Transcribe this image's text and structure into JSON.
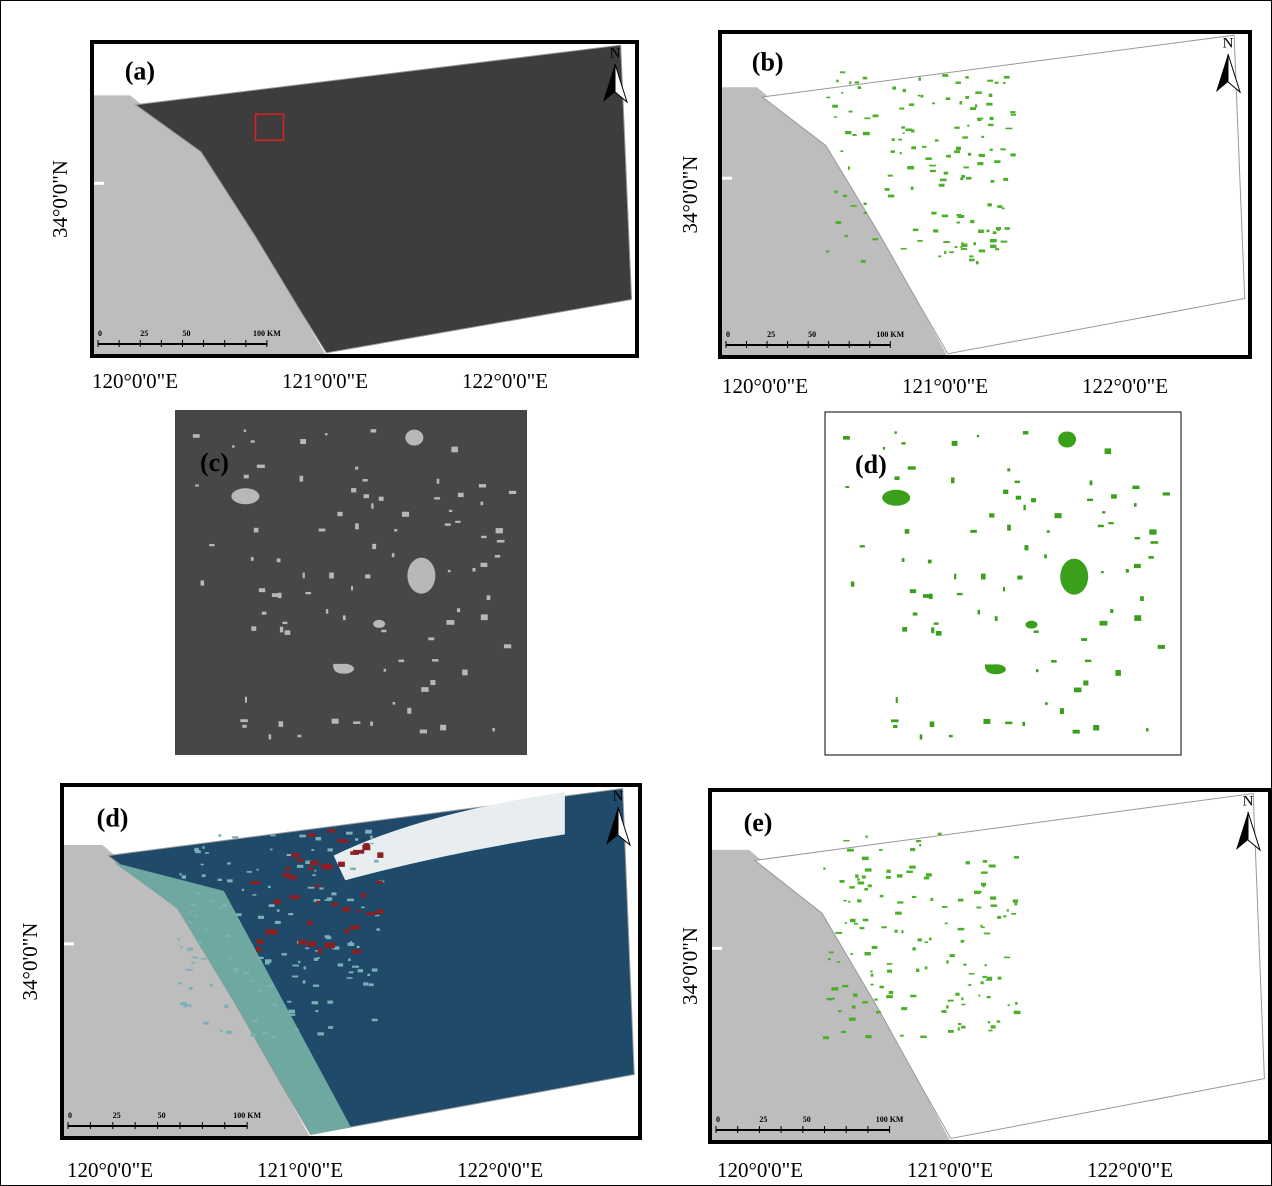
{
  "panels": [
    {
      "label": "(a)",
      "north": "N",
      "latitude": "34°0'0\"N",
      "longitudes": [
        "120°0'0\"E",
        "121°0'0\"E",
        "122°0'0\"E"
      ],
      "scale": [
        "0",
        "25",
        "50",
        "100 KM"
      ]
    },
    {
      "label": "(b)",
      "north": "N",
      "latitude": "34°0'0\"N",
      "longitudes": [
        "120°0'0\"E",
        "121°0'0\"E",
        "122°0'0\"E"
      ],
      "scale": [
        "0",
        "25",
        "50",
        "100 KM"
      ]
    },
    {
      "label": "(d)",
      "north": "N",
      "latitude": "34°0'0\"N",
      "longitudes": [
        "120°0'0\"E",
        "121°0'0\"E",
        "122°0'0\"E"
      ],
      "scale": [
        "0",
        "25",
        "50",
        "100 KM"
      ]
    },
    {
      "label": "(e)",
      "north": "N",
      "latitude": "34°0'0\"N",
      "longitudes": [
        "120°0'0\"E",
        "121°0'0\"E",
        "122°0'0\"E"
      ],
      "scale": [
        "0",
        "25",
        "50",
        "100 KM"
      ]
    }
  ],
  "insets": [
    {
      "label": "(c)"
    },
    {
      "label": "(d)"
    }
  ]
}
